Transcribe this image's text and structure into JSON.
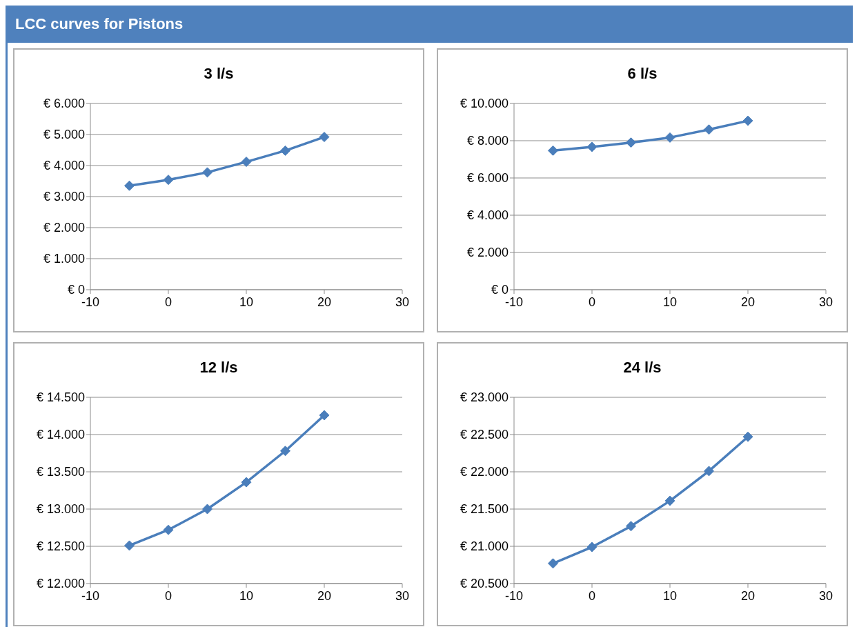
{
  "chart_data": [
    {
      "type": "other",
      "title": "LCC curves for Pistons"
    },
    {
      "type": "line",
      "title": "3 l/s",
      "x": [
        -5,
        0,
        5,
        10,
        15,
        20
      ],
      "series": [
        {
          "color": "#4a7ebb",
          "values": [
            3350,
            3540,
            3780,
            4120,
            4480,
            4920
          ]
        }
      ],
      "xlim": [
        -10,
        30
      ],
      "xticks": [
        -10,
        0,
        10,
        20,
        30
      ],
      "ylim": [
        0,
        6000
      ],
      "yticks": [
        {
          "value": 0,
          "label": "€ 0"
        },
        {
          "value": 1000,
          "label": "€ 1.000"
        },
        {
          "value": 2000,
          "label": "€ 2.000"
        },
        {
          "value": 3000,
          "label": "€ 3.000"
        },
        {
          "value": 4000,
          "label": "€ 4.000"
        },
        {
          "value": 5000,
          "label": "€ 5.000"
        },
        {
          "value": 6000,
          "label": "€ 6.000"
        }
      ],
      "grid": "y",
      "marker": "diamond",
      "legend": false
    },
    {
      "type": "line",
      "title": "6 l/s",
      "x": [
        -5,
        0,
        5,
        10,
        15,
        20
      ],
      "series": [
        {
          "color": "#4a7ebb",
          "values": [
            7470,
            7670,
            7900,
            8170,
            8600,
            9070
          ]
        }
      ],
      "xlim": [
        -10,
        30
      ],
      "xticks": [
        -10,
        0,
        10,
        20,
        30
      ],
      "ylim": [
        0,
        10000
      ],
      "yticks": [
        {
          "value": 0,
          "label": "€ 0"
        },
        {
          "value": 2000,
          "label": "€ 2.000"
        },
        {
          "value": 4000,
          "label": "€ 4.000"
        },
        {
          "value": 6000,
          "label": "€ 6.000"
        },
        {
          "value": 8000,
          "label": "€ 8.000"
        },
        {
          "value": 10000,
          "label": "€ 10.000"
        }
      ],
      "grid": "y",
      "marker": "diamond",
      "legend": false
    },
    {
      "type": "line",
      "title": "12 l/s",
      "x": [
        -5,
        0,
        5,
        10,
        15,
        20
      ],
      "series": [
        {
          "color": "#4a7ebb",
          "values": [
            12510,
            12720,
            13000,
            13360,
            13780,
            14260
          ]
        }
      ],
      "xlim": [
        -10,
        30
      ],
      "xticks": [
        -10,
        0,
        10,
        20,
        30
      ],
      "ylim": [
        12000,
        14500
      ],
      "yticks": [
        {
          "value": 12000,
          "label": "€ 12.000"
        },
        {
          "value": 12500,
          "label": "€ 12.500"
        },
        {
          "value": 13000,
          "label": "€ 13.000"
        },
        {
          "value": 13500,
          "label": "€ 13.500"
        },
        {
          "value": 14000,
          "label": "€ 14.000"
        },
        {
          "value": 14500,
          "label": "€ 14.500"
        }
      ],
      "grid": "y",
      "marker": "diamond",
      "legend": false
    },
    {
      "type": "line",
      "title": "24 l/s",
      "x": [
        -5,
        0,
        5,
        10,
        15,
        20
      ],
      "series": [
        {
          "color": "#4a7ebb",
          "values": [
            20770,
            20990,
            21270,
            21610,
            22010,
            22470
          ]
        }
      ],
      "xlim": [
        -10,
        30
      ],
      "xticks": [
        -10,
        0,
        10,
        20,
        30
      ],
      "ylim": [
        20500,
        23000
      ],
      "yticks": [
        {
          "value": 20500,
          "label": "€ 20.500"
        },
        {
          "value": 21000,
          "label": "€ 21.000"
        },
        {
          "value": 21500,
          "label": "€ 21.500"
        },
        {
          "value": 22000,
          "label": "€ 22.000"
        },
        {
          "value": 22500,
          "label": "€ 22.500"
        },
        {
          "value": 23000,
          "label": "€ 23.000"
        }
      ],
      "grid": "y",
      "marker": "diamond",
      "legend": false
    }
  ]
}
